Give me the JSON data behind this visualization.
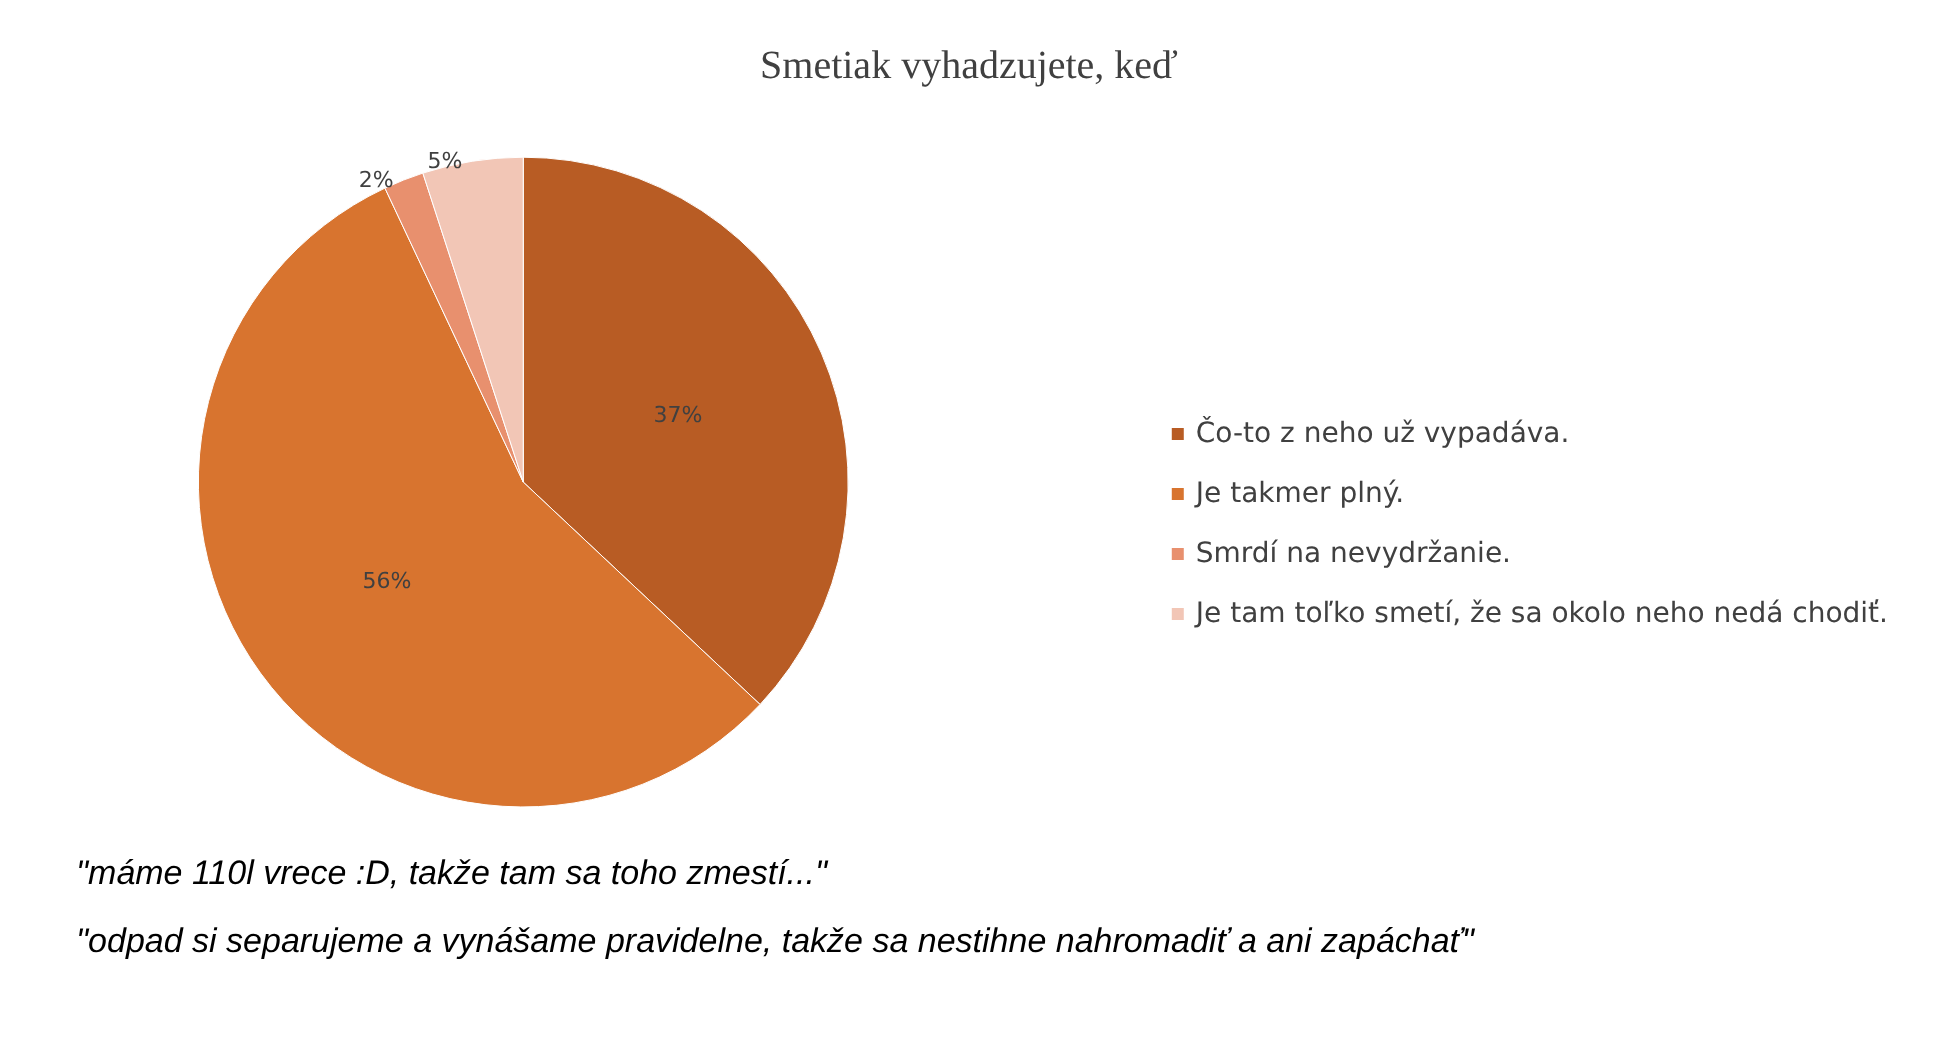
{
  "chart_data": {
    "type": "pie",
    "title": "Smetiak vyhadzujete, keď",
    "categories": [
      "Čo-to z neho už vypadáva.",
      "Je takmer plný.",
      "Smrdí na nevydržanie.",
      "Je tam toľko smetí, že sa okolo neho nedá chodiť."
    ],
    "values": [
      37,
      56,
      2,
      5
    ],
    "colors": [
      "#b85c24",
      "#d8742f",
      "#e8906e",
      "#f2c6b6"
    ],
    "value_labels": [
      "37%",
      "56%",
      "2%",
      "5%"
    ],
    "legend": "right",
    "annotations": [
      "\"máme 110l vrece :D, takže tam sa toho zmestí...\"",
      "\"odpad si separujeme a vynášame pravidelne, takže sa nestihne nahromadiť a ani zapáchať\""
    ]
  }
}
